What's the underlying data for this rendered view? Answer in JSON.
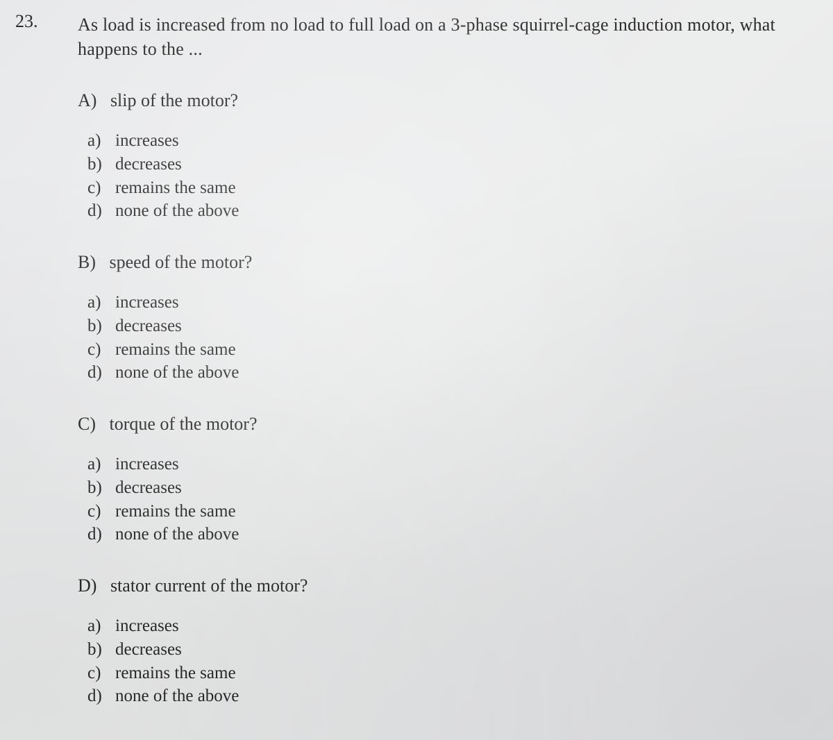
{
  "question": {
    "number": "23.",
    "text_line1": "As load is increased from no load to full load on a 3-phase squirrel-cage induction motor, what",
    "text_line2": "happens to the ..."
  },
  "sections": [
    {
      "heading_letter": "A)",
      "heading_text": "slip of the motor?",
      "options": [
        {
          "letter": "a)",
          "text": "increases"
        },
        {
          "letter": "b)",
          "text": "decreases"
        },
        {
          "letter": "c)",
          "text": "remains the same"
        },
        {
          "letter": "d)",
          "text": "none of the above"
        }
      ]
    },
    {
      "heading_letter": "B)",
      "heading_text": "speed of the motor?",
      "options": [
        {
          "letter": "a)",
          "text": "increases"
        },
        {
          "letter": "b)",
          "text": "decreases"
        },
        {
          "letter": "c)",
          "text": "remains the same"
        },
        {
          "letter": "d)",
          "text": "none of the above"
        }
      ]
    },
    {
      "heading_letter": "C)",
      "heading_text": "torque of the motor?",
      "options": [
        {
          "letter": "a)",
          "text": "increases"
        },
        {
          "letter": "b)",
          "text": "decreases"
        },
        {
          "letter": "c)",
          "text": "remains the same"
        },
        {
          "letter": "d)",
          "text": "none of the above"
        }
      ]
    },
    {
      "heading_letter": "D)",
      "heading_text": "stator current of the motor?",
      "options": [
        {
          "letter": "a)",
          "text": "increases"
        },
        {
          "letter": "b)",
          "text": "decreases"
        },
        {
          "letter": "c)",
          "text": "remains the same"
        },
        {
          "letter": "d)",
          "text": "none of the above"
        }
      ]
    }
  ],
  "style": {
    "font_family": "Times New Roman",
    "body_fontsize_pt": 19,
    "text_color": "#2a2a2a",
    "background_color": "#eaebed"
  }
}
